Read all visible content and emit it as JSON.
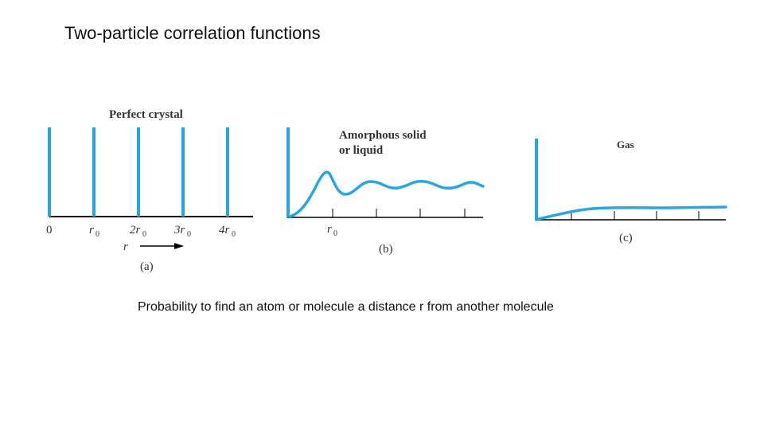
{
  "slide": {
    "title": "Two-particle correlation functions",
    "caption": "Probability to find an atom or molecule a distance r from another molecule"
  },
  "colors": {
    "curve": "#29A6DE",
    "axis": "#000000",
    "text": "#333333"
  },
  "panels": {
    "a": {
      "heading": "Perfect crystal",
      "tick_labels": [
        "0",
        "r",
        "2r",
        "3r",
        "4r"
      ],
      "tick_subscript": "0",
      "r_label": "r",
      "label": "(a)"
    },
    "b": {
      "heading_line1": "Amorphous solid",
      "heading_line2": "or liquid",
      "tick_label": "r",
      "tick_subscript": "0",
      "label": "(b)"
    },
    "c": {
      "heading": "Gas",
      "label": "(c)"
    }
  }
}
